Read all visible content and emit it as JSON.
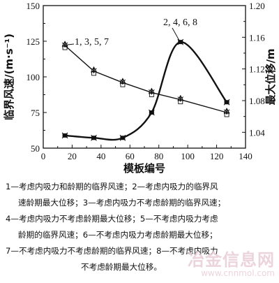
{
  "chart_data": {
    "type": "line",
    "xlabel": "模板编号",
    "ylabel_left": "临界风速/(m·s⁻¹)",
    "ylabel_right": "最大位移/m",
    "x_ticks": [
      "0",
      "20",
      "40",
      "60",
      "80",
      "100",
      "120",
      "140"
    ],
    "y_left_ticks": [
      "50",
      "75",
      "100",
      "125",
      "150"
    ],
    "y_right_ticks": [
      "1.04",
      "1.08",
      "1.12",
      "1.16",
      "1.20"
    ],
    "xlim": [
      0,
      140
    ],
    "ylim_left": [
      50,
      150
    ],
    "ylim_right": [
      1.02,
      1.2
    ],
    "x": [
      15,
      35,
      55,
      75,
      95,
      127
    ],
    "series": [
      {
        "name": "1, 3, 5, 7",
        "axis": "left",
        "values": [
          122,
          104,
          96,
          89,
          84,
          75
        ]
      },
      {
        "name": "2, 4, 6, 8",
        "axis": "right",
        "values": [
          1.036,
          1.033,
          1.033,
          1.065,
          1.154,
          1.078
        ]
      }
    ],
    "annotations": [
      {
        "text": "1, 3, 5, 7",
        "series": 0
      },
      {
        "text": "2, 4, 6, 8",
        "series": 1
      }
    ],
    "grid": false
  },
  "caption": [
    "1—考虑内吸力和龄期的临界风速；2—考虑内吸力的临界风",
    "速龄期最大位移；3—考虑内吸力不考虑龄期的临界风速；",
    "4—考虑内吸力不考虑龄期最大位移；5—不考虑内吸力考虑",
    "龄期的临界风速；6—不考虑内吸力考虑龄期最大位移；",
    "7—不考虑内吸力不考虑龄期的临界风速；8—不考虑内吸力",
    "不考虑龄期最大位移。"
  ],
  "watermark": {
    "text": "冶金信息网",
    "url": "www.cnnmol.com"
  }
}
